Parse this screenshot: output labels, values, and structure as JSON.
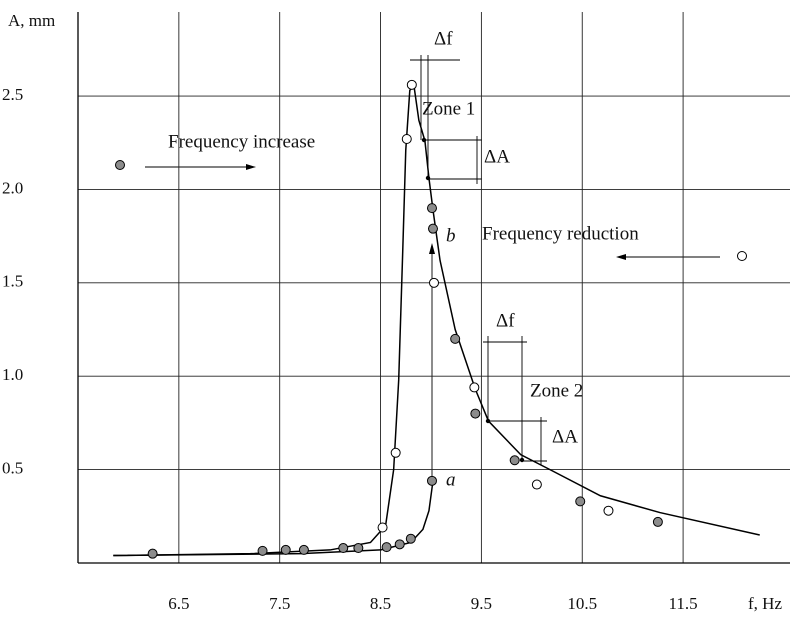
{
  "chart_data": {
    "type": "scatter",
    "xlabel": "f, Hz",
    "ylabel": "A, mm",
    "xlim": [
      5.5,
      12.56
    ],
    "ylim": [
      0,
      2.95
    ],
    "xticks": [
      6.5,
      7.5,
      8.5,
      9.5,
      10.5,
      11.5
    ],
    "yticks": [
      0.5,
      {
        "value": 1,
        "label": "1.0"
      },
      1.5,
      {
        "value": 2,
        "label": "2.0"
      },
      2.5
    ],
    "grid": true,
    "series": [
      {
        "name": "Frequency increase",
        "color": "#8c8c8c",
        "x": [
          6.24,
          7.33,
          7.56,
          7.74,
          8.13,
          8.28,
          8.56,
          8.69,
          8.8,
          9.01,
          9.01,
          9.02,
          9.24,
          9.44,
          9.83,
          10.48,
          11.25
        ],
        "values": [
          0.05,
          0.065,
          0.07,
          0.07,
          0.08,
          0.08,
          0.085,
          0.1,
          0.13,
          0.44,
          1.9,
          1.79,
          1.2,
          0.8,
          0.55,
          0.33,
          0.22
        ]
      },
      {
        "name": "Frequency reduction",
        "color": "#ffffff",
        "x": [
          8.52,
          8.65,
          8.76,
          8.81,
          9.03,
          9.43,
          10.05,
          10.76
        ],
        "values": [
          0.19,
          0.59,
          2.27,
          2.56,
          1.5,
          0.94,
          0.42,
          0.28
        ]
      }
    ],
    "curves": [
      {
        "x": [
          5.85,
          7.21,
          8.0,
          8.4,
          8.55,
          8.63,
          8.68,
          8.72,
          8.75,
          8.79,
          8.83,
          8.88,
          8.94,
          8.98,
          9.02,
          9.09,
          9.24,
          9.44,
          9.57,
          9.89,
          10.18,
          10.68,
          11.27,
          12.26
        ],
        "values": [
          0.04,
          0.05,
          0.07,
          0.11,
          0.2,
          0.5,
          0.98,
          1.67,
          2.21,
          2.53,
          2.56,
          2.37,
          2.26,
          2.06,
          1.89,
          1.62,
          1.25,
          0.93,
          0.76,
          0.58,
          0.5,
          0.36,
          0.27,
          0.15
        ]
      },
      {
        "x": [
          5.85,
          7.71,
          8.5,
          8.8,
          8.92,
          8.98,
          9.02
        ],
        "values": [
          0.04,
          0.05,
          0.07,
          0.11,
          0.18,
          0.28,
          0.44
        ]
      }
    ],
    "annotations": [
      "Δf",
      "Zone 1",
      "ΔA",
      "b",
      "Δf",
      "Zone 2",
      "ΔA",
      "a"
    ]
  }
}
